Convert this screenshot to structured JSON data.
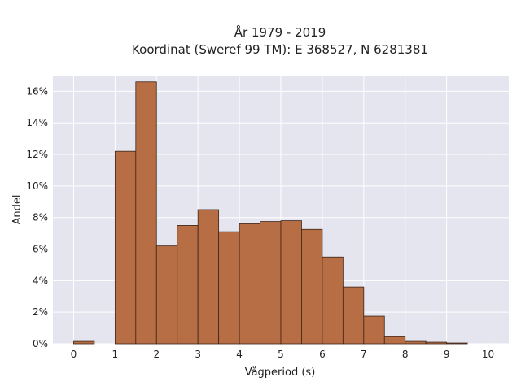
{
  "chart_data": {
    "type": "bar",
    "title_line1": "År 1979 - 2019",
    "title_line2": "Koordinat (Sweref 99 TM): E 368527, N 6281381",
    "xlabel": "Vågperiod (s)",
    "ylabel": "Andel",
    "xlim": [
      -0.5,
      10.5
    ],
    "ylim": [
      0,
      17
    ],
    "x_ticks": [
      0,
      1,
      2,
      3,
      4,
      5,
      6,
      7,
      8,
      9,
      10
    ],
    "x_tick_labels": [
      "0",
      "1",
      "2",
      "3",
      "4",
      "5",
      "6",
      "7",
      "8",
      "9",
      "10"
    ],
    "y_ticks": [
      0,
      2,
      4,
      6,
      8,
      10,
      12,
      14,
      16
    ],
    "y_tick_labels": [
      "0%",
      "2%",
      "4%",
      "6%",
      "8%",
      "10%",
      "12%",
      "14%",
      "16%"
    ],
    "bin_width": 0.5,
    "bins": [
      {
        "x0": 0.0,
        "value": 0.15
      },
      {
        "x0": 0.5,
        "value": 0.0
      },
      {
        "x0": 1.0,
        "value": 12.2
      },
      {
        "x0": 1.5,
        "value": 16.6
      },
      {
        "x0": 2.0,
        "value": 6.2
      },
      {
        "x0": 2.5,
        "value": 7.5
      },
      {
        "x0": 3.0,
        "value": 8.5
      },
      {
        "x0": 3.5,
        "value": 7.1
      },
      {
        "x0": 4.0,
        "value": 7.6
      },
      {
        "x0": 4.5,
        "value": 7.75
      },
      {
        "x0": 5.0,
        "value": 7.8
      },
      {
        "x0": 5.5,
        "value": 7.25
      },
      {
        "x0": 6.0,
        "value": 5.5
      },
      {
        "x0": 6.5,
        "value": 3.6
      },
      {
        "x0": 7.0,
        "value": 1.75
      },
      {
        "x0": 7.5,
        "value": 0.45
      },
      {
        "x0": 8.0,
        "value": 0.15
      },
      {
        "x0": 8.5,
        "value": 0.1
      },
      {
        "x0": 9.0,
        "value": 0.05
      }
    ],
    "grid": true,
    "colors": {
      "bar_fill": "#b86e45",
      "bar_edge": "#3a2418",
      "plot_bg": "#e5e5ef",
      "grid": "#ffffff"
    }
  }
}
